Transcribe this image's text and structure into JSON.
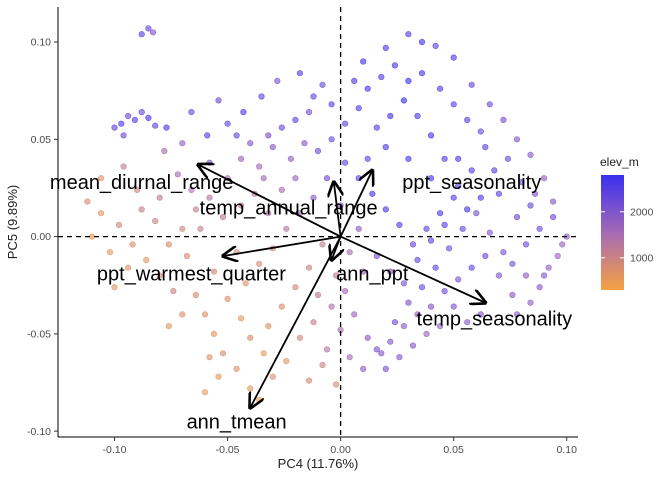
{
  "chart_data": {
    "type": "scatter",
    "xlabel": "PC4 (11.76%)",
    "ylabel": "PC5 (9.89%)",
    "xlim": [
      -0.125,
      0.105
    ],
    "ylim": [
      -0.103,
      0.118
    ],
    "x_ticks": [
      -0.1,
      -0.05,
      0.0,
      0.05,
      0.1
    ],
    "x_tick_labels": [
      "-0.10",
      "-0.05",
      "0.00",
      "0.05",
      "0.10"
    ],
    "y_ticks": [
      -0.1,
      -0.05,
      0.0,
      0.05,
      0.1
    ],
    "y_tick_labels": [
      "-0.10",
      "-0.05",
      "0.00",
      "0.05",
      "0.10"
    ],
    "grid": false,
    "reference_lines": {
      "x": 0,
      "y": 0,
      "style": "dashed"
    },
    "legend": {
      "title": "elev_m",
      "position": "right",
      "range": [
        300,
        2800
      ],
      "ticks": [
        1000,
        2000
      ],
      "tick_labels": [
        "1000",
        "2000"
      ],
      "color_low": "#F6A142",
      "color_high": "#3A2FF0"
    },
    "arrows": [
      {
        "label": "mean_diurnal_range",
        "x": -0.063,
        "y": 0.037,
        "label_x": -0.088,
        "label_y": 0.028
      },
      {
        "label": "ppt_seasonality",
        "x": 0.014,
        "y": 0.034,
        "label_x": 0.058,
        "label_y": 0.028
      },
      {
        "label": "temp_annual_range",
        "x": -0.003,
        "y": 0.028,
        "label_x": -0.023,
        "label_y": 0.015
      },
      {
        "label": "ppt_warmest_quarter",
        "x": -0.052,
        "y": -0.01,
        "label_x": -0.066,
        "label_y": -0.019
      },
      {
        "label": "ann_ppt",
        "x": -0.004,
        "y": -0.012,
        "label_x": 0.014,
        "label_y": -0.019
      },
      {
        "label": "temp_seasonality",
        "x": 0.064,
        "y": -0.034,
        "label_x": 0.068,
        "label_y": -0.042
      },
      {
        "label": "ann_tmean",
        "x": -0.04,
        "y": -0.088,
        "label_x": -0.046,
        "label_y": -0.095
      }
    ],
    "points": [
      [
        -0.085,
        0.107,
        2300
      ],
      [
        -0.083,
        0.105,
        2100
      ],
      [
        -0.088,
        0.104,
        2500
      ],
      [
        -0.1,
        0.056,
        2400
      ],
      [
        -0.097,
        0.058,
        2600
      ],
      [
        -0.094,
        0.062,
        2200
      ],
      [
        -0.091,
        0.06,
        2500
      ],
      [
        -0.088,
        0.064,
        2300
      ],
      [
        -0.085,
        0.061,
        2700
      ],
      [
        -0.082,
        0.057,
        2400
      ],
      [
        -0.096,
        0.052,
        2200
      ],
      [
        -0.077,
        0.056,
        2600
      ],
      [
        -0.066,
        0.064,
        2300
      ],
      [
        -0.059,
        0.052,
        2500
      ],
      [
        -0.05,
        0.058,
        2400
      ],
      [
        -0.054,
        0.07,
        2200
      ],
      [
        -0.043,
        0.064,
        2600
      ],
      [
        -0.035,
        0.072,
        2400
      ],
      [
        -0.028,
        0.08,
        2100
      ],
      [
        -0.018,
        0.084,
        2500
      ],
      [
        -0.012,
        0.072,
        2300
      ],
      [
        0.01,
        0.09,
        2700
      ],
      [
        0.02,
        0.097,
        2600
      ],
      [
        0.03,
        0.104,
        2500
      ],
      [
        0.036,
        0.1,
        2700
      ],
      [
        0.042,
        0.098,
        2400
      ],
      [
        0.05,
        0.092,
        2600
      ],
      [
        0.058,
        0.078,
        2300
      ],
      [
        0.066,
        0.068,
        2200
      ],
      [
        0.072,
        0.06,
        2100
      ],
      [
        0.078,
        0.05,
        2000
      ],
      [
        0.084,
        0.042,
        1900
      ],
      [
        0.09,
        0.03,
        1800
      ],
      [
        0.094,
        0.018,
        1900
      ],
      [
        0.098,
        -0.004,
        1700
      ],
      [
        0.092,
        -0.016,
        1800
      ],
      [
        0.088,
        -0.026,
        1900
      ],
      [
        0.082,
        -0.02,
        1800
      ],
      [
        0.076,
        -0.03,
        1900
      ],
      [
        0.064,
        0.046,
        2400
      ],
      [
        0.058,
        0.034,
        2500
      ],
      [
        0.052,
        0.026,
        2600
      ],
      [
        0.046,
        0.04,
        2500
      ],
      [
        0.04,
        0.052,
        2700
      ],
      [
        0.034,
        0.062,
        2600
      ],
      [
        0.028,
        0.07,
        2800
      ],
      [
        0.022,
        0.062,
        2700
      ],
      [
        0.016,
        0.056,
        2500
      ],
      [
        0.008,
        0.066,
        2600
      ],
      [
        0.002,
        0.058,
        2400
      ],
      [
        -0.004,
        0.05,
        2300
      ],
      [
        -0.01,
        0.044,
        2200
      ],
      [
        -0.016,
        0.048,
        2000
      ],
      [
        -0.022,
        0.04,
        1800
      ],
      [
        -0.03,
        0.046,
        1900
      ],
      [
        -0.036,
        0.036,
        1600
      ],
      [
        -0.044,
        0.04,
        1700
      ],
      [
        -0.05,
        0.03,
        1500
      ],
      [
        -0.058,
        0.038,
        2100
      ],
      [
        -0.066,
        0.024,
        1400
      ],
      [
        -0.072,
        0.032,
        1600
      ],
      [
        -0.08,
        0.02,
        1200
      ],
      [
        -0.09,
        0.024,
        1000
      ],
      [
        -0.106,
        0.03,
        700
      ],
      [
        -0.112,
        0.018,
        800
      ],
      [
        -0.098,
        0.006,
        900
      ],
      [
        -0.092,
        -0.004,
        700
      ],
      [
        -0.086,
        -0.012,
        600
      ],
      [
        -0.08,
        -0.02,
        900
      ],
      [
        -0.074,
        -0.028,
        1000
      ],
      [
        -0.068,
        -0.01,
        800
      ],
      [
        -0.062,
        0.004,
        1100
      ],
      [
        -0.056,
        -0.018,
        900
      ],
      [
        -0.05,
        -0.032,
        700
      ],
      [
        -0.044,
        -0.042,
        600
      ],
      [
        -0.04,
        -0.052,
        800
      ],
      [
        -0.034,
        -0.06,
        500
      ],
      [
        -0.03,
        -0.072,
        700
      ],
      [
        -0.024,
        -0.064,
        600
      ],
      [
        -0.018,
        -0.052,
        900
      ],
      [
        -0.012,
        -0.044,
        1100
      ],
      [
        -0.006,
        -0.058,
        1300
      ],
      [
        0.0,
        -0.048,
        1500
      ],
      [
        0.006,
        -0.04,
        1700
      ],
      [
        0.012,
        -0.052,
        1900
      ],
      [
        0.018,
        -0.06,
        2000
      ],
      [
        0.024,
        -0.044,
        2200
      ],
      [
        0.03,
        -0.034,
        2100
      ],
      [
        0.036,
        -0.026,
        2300
      ],
      [
        0.042,
        -0.016,
        2400
      ],
      [
        0.048,
        -0.006,
        2200
      ],
      [
        0.054,
        0.004,
        2300
      ],
      [
        0.06,
        0.012,
        2100
      ],
      [
        0.066,
        0.002,
        2000
      ],
      [
        0.072,
        -0.008,
        2100
      ],
      [
        0.078,
        0.01,
        2200
      ],
      [
        0.084,
        0.016,
        2300
      ],
      [
        0.07,
        0.022,
        2500
      ],
      [
        0.062,
        0.02,
        2600
      ],
      [
        0.056,
        0.014,
        2700
      ],
      [
        0.05,
        0.02,
        2500
      ],
      [
        0.044,
        0.012,
        2600
      ],
      [
        0.038,
        0.004,
        2400
      ],
      [
        0.032,
        -0.004,
        2300
      ],
      [
        0.026,
        0.006,
        2500
      ],
      [
        0.02,
        0.014,
        2600
      ],
      [
        0.014,
        0.022,
        2700
      ],
      [
        0.008,
        0.03,
        2500
      ],
      [
        0.002,
        0.038,
        2400
      ],
      [
        -0.006,
        0.03,
        2200
      ],
      [
        -0.012,
        0.02,
        1900
      ],
      [
        -0.018,
        0.012,
        1600
      ],
      [
        -0.024,
        0.004,
        1300
      ],
      [
        -0.03,
        -0.006,
        1000
      ],
      [
        -0.036,
        -0.014,
        800
      ],
      [
        -0.042,
        -0.024,
        700
      ],
      [
        -0.046,
        -0.008,
        900
      ],
      [
        -0.052,
        0.01,
        1200
      ],
      [
        -0.058,
        0.02,
        1300
      ],
      [
        -0.064,
        0.014,
        1100
      ],
      [
        -0.07,
        0.004,
        900
      ],
      [
        -0.076,
        -0.004,
        800
      ],
      [
        -0.082,
        0.008,
        1000
      ],
      [
        -0.088,
        0.014,
        1100
      ],
      [
        -0.094,
        -0.016,
        700
      ],
      [
        -0.1,
        -0.026,
        600
      ],
      [
        -0.06,
        -0.04,
        700
      ],
      [
        -0.056,
        -0.05,
        600
      ],
      [
        -0.052,
        -0.06,
        800
      ],
      [
        -0.046,
        -0.068,
        700
      ],
      [
        -0.04,
        -0.078,
        600
      ],
      [
        -0.036,
        -0.084,
        500
      ],
      [
        -0.054,
        -0.072,
        600
      ],
      [
        -0.058,
        -0.062,
        700
      ],
      [
        -0.06,
        -0.08,
        500
      ],
      [
        -0.014,
        -0.074,
        800
      ],
      [
        -0.008,
        -0.066,
        1000
      ],
      [
        -0.002,
        -0.076,
        900
      ],
      [
        0.004,
        -0.062,
        1600
      ],
      [
        0.01,
        -0.068,
        1800
      ],
      [
        0.016,
        -0.058,
        2100
      ],
      [
        0.022,
        -0.054,
        2000
      ],
      [
        0.028,
        -0.046,
        1900
      ],
      [
        0.034,
        -0.04,
        1800
      ],
      [
        0.04,
        -0.036,
        2000
      ],
      [
        0.046,
        -0.028,
        2200
      ],
      [
        0.052,
        -0.022,
        2100
      ],
      [
        0.058,
        -0.016,
        2300
      ],
      [
        0.064,
        -0.01,
        2200
      ],
      [
        0.07,
        -0.02,
        2000
      ],
      [
        0.076,
        -0.014,
        2100
      ],
      [
        0.082,
        -0.004,
        2200
      ],
      [
        0.088,
        0.004,
        2300
      ],
      [
        0.094,
        0.01,
        2200
      ],
      [
        0.062,
        -0.04,
        2000
      ],
      [
        0.056,
        -0.044,
        1900
      ],
      [
        0.05,
        -0.036,
        2000
      ],
      [
        0.044,
        -0.046,
        1800
      ],
      [
        0.038,
        -0.05,
        1700
      ],
      [
        0.032,
        -0.056,
        1900
      ],
      [
        0.026,
        -0.062,
        2000
      ],
      [
        0.02,
        -0.068,
        2100
      ],
      [
        -0.02,
        0.06,
        2400
      ],
      [
        -0.026,
        0.056,
        2200
      ],
      [
        -0.032,
        0.052,
        2100
      ],
      [
        -0.04,
        0.048,
        2000
      ],
      [
        -0.046,
        0.052,
        2300
      ],
      [
        0.006,
        0.08,
        2600
      ],
      [
        0.012,
        0.076,
        2700
      ],
      [
        0.018,
        0.082,
        2500
      ],
      [
        0.024,
        0.088,
        2600
      ],
      [
        0.03,
        0.08,
        2800
      ],
      [
        0.036,
        0.084,
        2700
      ],
      [
        0.044,
        0.076,
        2600
      ],
      [
        0.05,
        0.068,
        2500
      ],
      [
        0.056,
        0.06,
        2400
      ],
      [
        0.062,
        0.054,
        2300
      ],
      [
        -0.004,
        0.068,
        2500
      ],
      [
        -0.008,
        0.078,
        2300
      ],
      [
        -0.014,
        0.064,
        2100
      ],
      [
        -0.106,
        0.012,
        600
      ],
      [
        -0.11,
        0.0,
        500
      ],
      [
        -0.102,
        -0.008,
        600
      ],
      [
        -0.096,
        0.036,
        1100
      ],
      [
        -0.078,
        0.044,
        1500
      ],
      [
        -0.07,
        0.048,
        1800
      ],
      [
        0.0,
        0.016,
        1800
      ],
      [
        -0.002,
        -0.02,
        1200
      ],
      [
        0.004,
        -0.008,
        1500
      ],
      [
        0.008,
        0.004,
        1900
      ],
      [
        -0.008,
        -0.004,
        1100
      ],
      [
        -0.014,
        -0.016,
        1000
      ],
      [
        -0.02,
        -0.026,
        900
      ],
      [
        -0.026,
        -0.036,
        800
      ],
      [
        -0.032,
        -0.046,
        700
      ],
      [
        -0.064,
        -0.03,
        800
      ],
      [
        -0.07,
        -0.04,
        700
      ],
      [
        -0.076,
        -0.046,
        600
      ],
      [
        -0.01,
        -0.03,
        1200
      ],
      [
        -0.004,
        -0.036,
        1400
      ],
      [
        0.002,
        -0.028,
        1600
      ],
      [
        0.01,
        -0.018,
        1900
      ],
      [
        0.016,
        -0.01,
        2100
      ],
      [
        0.022,
        -0.018,
        2000
      ],
      [
        0.028,
        -0.024,
        2100
      ],
      [
        0.034,
        -0.012,
        2300
      ],
      [
        0.04,
        -0.002,
        2400
      ],
      [
        0.046,
        0.006,
        2500
      ],
      [
        0.052,
        0.04,
        2600
      ],
      [
        0.04,
        0.03,
        2700
      ],
      [
        0.03,
        0.04,
        2700
      ],
      [
        0.02,
        0.046,
        2600
      ],
      [
        0.012,
        0.04,
        2400
      ],
      [
        -0.038,
        0.022,
        1400
      ],
      [
        -0.044,
        0.016,
        1200
      ],
      [
        -0.032,
        0.012,
        1300
      ],
      [
        -0.026,
        0.024,
        1500
      ],
      [
        -0.02,
        0.03,
        1700
      ],
      [
        -0.034,
        0.03,
        1600
      ],
      [
        0.078,
        -0.04,
        1900
      ],
      [
        0.084,
        -0.034,
        1800
      ],
      [
        0.09,
        -0.02,
        1900
      ],
      [
        0.1,
        0.0,
        1800
      ],
      [
        0.096,
        -0.01,
        1700
      ],
      [
        0.068,
        0.034,
        2400
      ],
      [
        0.074,
        0.04,
        2300
      ],
      [
        0.08,
        0.028,
        2200
      ],
      [
        0.086,
        0.022,
        2100
      ]
    ]
  }
}
